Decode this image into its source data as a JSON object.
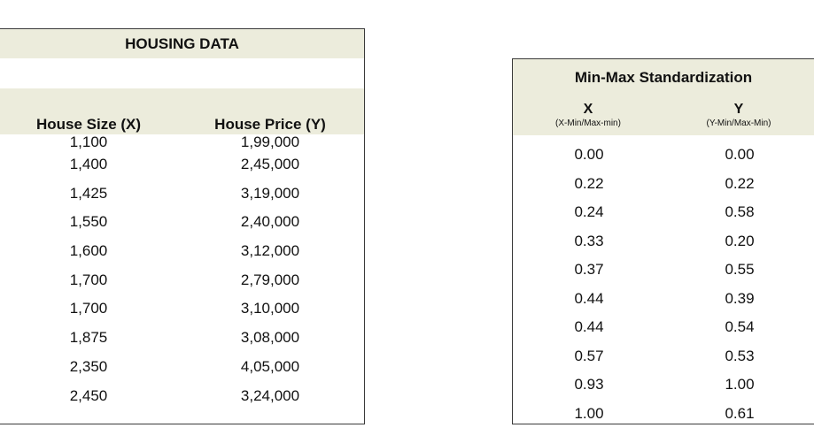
{
  "housing": {
    "title": "HOUSING DATA",
    "headers": {
      "x": "House Size (X)",
      "y": "House Price (Y)"
    },
    "rows": [
      {
        "x": "1,100",
        "y": "1,99,000"
      },
      {
        "x": "1,400",
        "y": "2,45,000"
      },
      {
        "x": "1,425",
        "y": "3,19,000"
      },
      {
        "x": "1,550",
        "y": "2,40,000"
      },
      {
        "x": "1,600",
        "y": "3,12,000"
      },
      {
        "x": "1,700",
        "y": "2,79,000"
      },
      {
        "x": "1,700",
        "y": "3,10,000"
      },
      {
        "x": "1,875",
        "y": "3,08,000"
      },
      {
        "x": "2,350",
        "y": "4,05,000"
      },
      {
        "x": "2,450",
        "y": "3,24,000"
      }
    ]
  },
  "minmax": {
    "title": "Min-Max Standardization",
    "headers": {
      "x": "X",
      "x_formula": "(X-Min/Max-min)",
      "y": "Y",
      "y_formula": "(Y-Min/Max-Min)"
    },
    "rows": [
      {
        "x": "0.00",
        "y": "0.00"
      },
      {
        "x": "0.22",
        "y": "0.22"
      },
      {
        "x": "0.24",
        "y": "0.58"
      },
      {
        "x": "0.33",
        "y": "0.20"
      },
      {
        "x": "0.37",
        "y": "0.55"
      },
      {
        "x": "0.44",
        "y": "0.39"
      },
      {
        "x": "0.44",
        "y": "0.54"
      },
      {
        "x": "0.57",
        "y": "0.53"
      },
      {
        "x": "0.93",
        "y": "1.00"
      },
      {
        "x": "1.00",
        "y": "0.61"
      }
    ]
  }
}
